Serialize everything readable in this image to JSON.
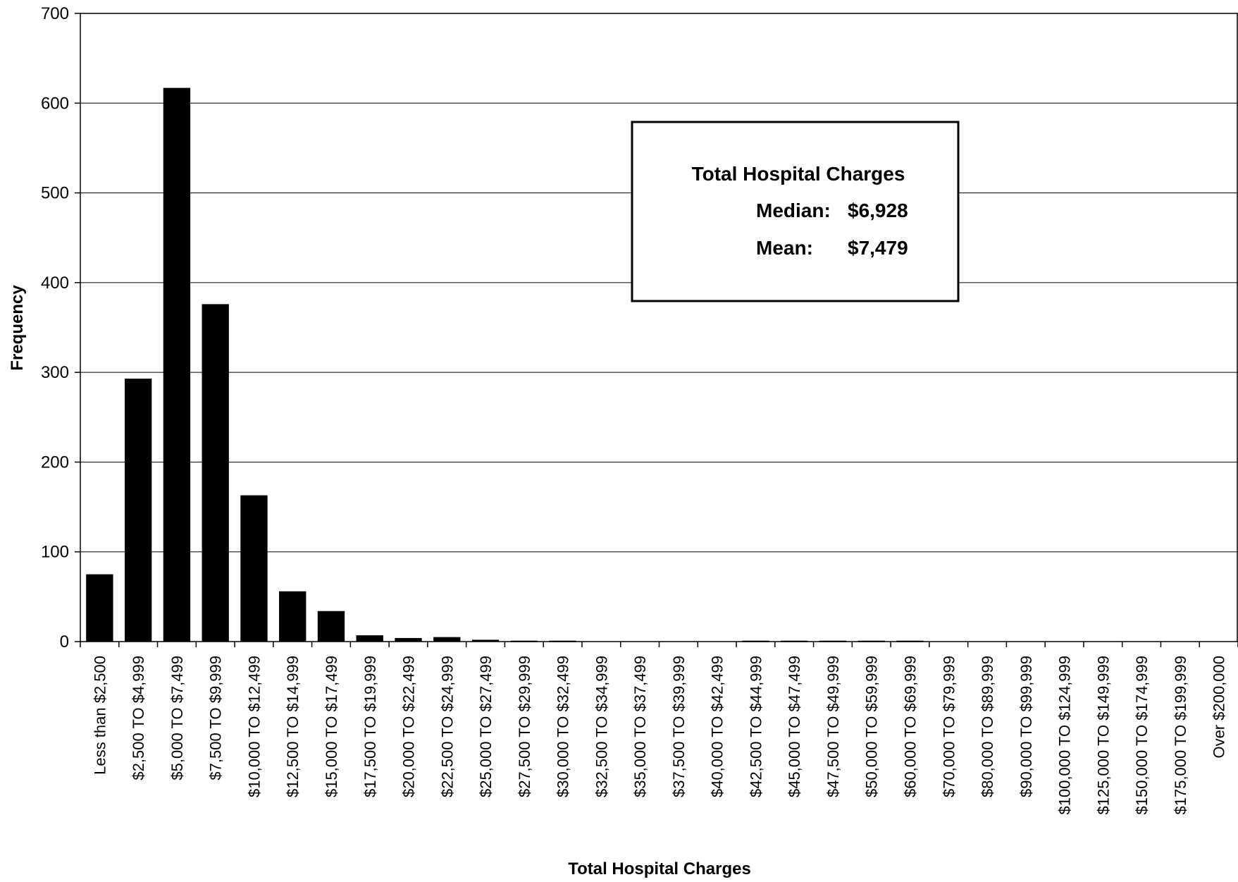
{
  "chart_data": {
    "type": "bar",
    "title": "",
    "xlabel": "Total Hospital Charges",
    "ylabel": "Frequency",
    "ylim": [
      0,
      700
    ],
    "yticks": [
      0,
      100,
      200,
      300,
      400,
      500,
      600,
      700
    ],
    "grid": true,
    "bar_color": "#000000",
    "categories": [
      "Less than $2,500",
      "$2,500 TO $4,999",
      "$5,000 TO $7,499",
      "$7,500 TO $9,999",
      "$10,000 TO $12,499",
      "$12,500 TO $14,999",
      "$15,000 TO $17,499",
      "$17,500 TO $19,999",
      "$20,000 TO $22,499",
      "$22,500 TO $24,999",
      "$25,000 TO $27,499",
      "$27,500 TO $29,999",
      "$30,000 TO $32,499",
      "$32,500 TO $34,999",
      "$35,000 TO $37,499",
      "$37,500 TO $39,999",
      "$40,000 TO $42,499",
      "$42,500 TO $44,999",
      "$45,000 TO $47,499",
      "$47,500 TO $49,999",
      "$50,000 TO $59,999",
      "$60,000 TO $69,999",
      "$70,000 TO $79,999",
      "$80,000 TO $89,999",
      "$90,000 TO $99,999",
      "$100,000 TO $124,999",
      "$125,000 TO $149,999",
      "$150,000 TO $174,999",
      "$175,000 TO $199,999",
      "Over $200,000"
    ],
    "values": [
      75,
      293,
      617,
      376,
      163,
      56,
      34,
      7,
      4,
      5,
      2,
      1,
      1,
      0,
      0,
      0,
      0,
      1,
      1,
      1,
      1,
      1,
      0,
      0,
      0,
      0,
      0,
      0,
      0,
      0
    ],
    "annotation": {
      "heading": "Total Hospital Charges",
      "median_label": "Median:",
      "median_value": "$6,928",
      "mean_label": "Mean:",
      "mean_value": "$7,479"
    }
  }
}
